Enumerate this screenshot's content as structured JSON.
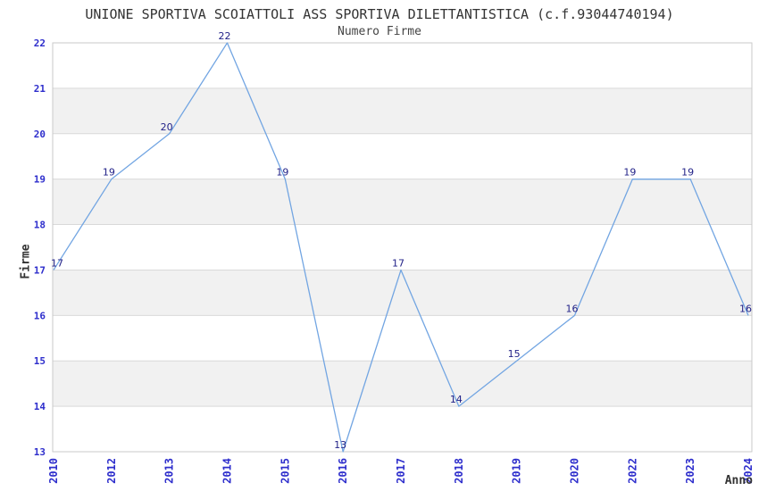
{
  "chart_data": {
    "type": "line",
    "title": "UNIONE SPORTIVA SCOIATTOLI ASS SPORTIVA DILETTANTISTICA (c.f.93044740194)",
    "subtitle": "Numero Firme",
    "xlabel": "Anno",
    "ylabel": "Firme",
    "categories": [
      "2010",
      "2012",
      "2013",
      "2014",
      "2015",
      "2016",
      "2017",
      "2018",
      "2019",
      "2020",
      "2022",
      "2023",
      "2024"
    ],
    "values": [
      17,
      19,
      20,
      22,
      19,
      13,
      17,
      14,
      15,
      16,
      19,
      19,
      16
    ],
    "ylim": [
      13,
      22
    ],
    "yticks": [
      13,
      14,
      15,
      16,
      17,
      18,
      19,
      20,
      21,
      22
    ],
    "grid": true,
    "legend": "none",
    "band_pattern": "alternating horizontal bands, white from 13, gray bands at 14-15, 16-17, 18-19, 20-21",
    "colors": {
      "line": "#72a5e2",
      "tick_label": "#2e2ecc",
      "data_label": "#222288",
      "text": "#333333",
      "band": "#f1f1f1",
      "gridline": "#d9d9d9",
      "border": "#c9c9c9",
      "background": "#ffffff"
    }
  }
}
